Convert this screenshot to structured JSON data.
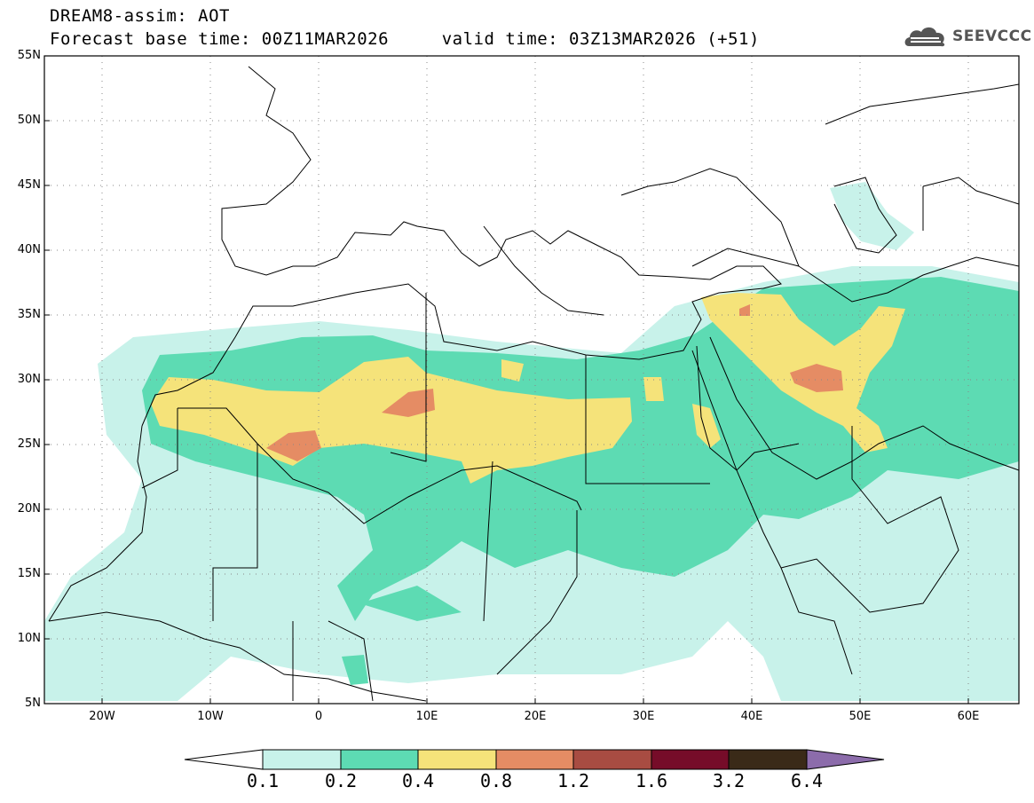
{
  "header": {
    "title_line1": "DREAM8-assim: AOT",
    "title_line2": "Forecast base time: 00Z11MAR2026     valid time: 03Z13MAR2026 (+51)"
  },
  "logo": {
    "text": "SEEVCCC",
    "icon": "cloud-icon"
  },
  "map": {
    "lon_range": [
      -25,
      65
    ],
    "lat_range": [
      5,
      55
    ],
    "y_ticks": [
      "55N",
      "50N",
      "45N",
      "40N",
      "35N",
      "30N",
      "25N",
      "20N",
      "15N",
      "10N",
      "5N"
    ],
    "x_ticks": [
      "20W",
      "10W",
      "0",
      "10E",
      "20E",
      "30E",
      "40E",
      "50E",
      "60E"
    ]
  },
  "colorbar": {
    "labels": [
      "0.1",
      "0.2",
      "0.4",
      "0.8",
      "1.2",
      "1.6",
      "3.2",
      "6.4"
    ],
    "colors": [
      "#ffffff",
      "#c8f2ea",
      "#5ddbb3",
      "#f5e37a",
      "#e58c64",
      "#a84c42",
      "#760c29",
      "#3a2a18",
      "#8c6cab"
    ]
  }
}
